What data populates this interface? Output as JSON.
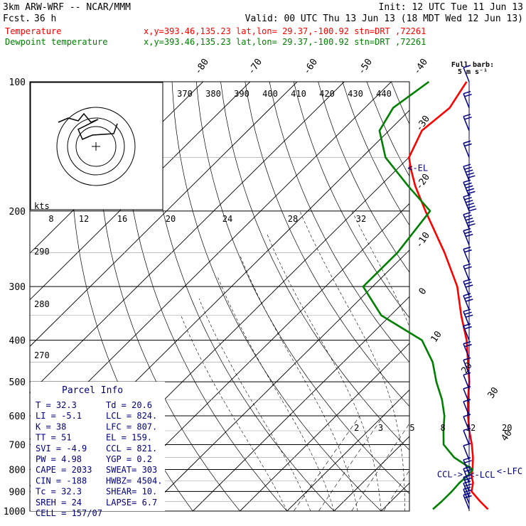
{
  "header": {
    "model": "3km ARW-WRF -- NCAR/MMM",
    "fcst_label": "Fcst.",
    "fcst_hours": "36 h",
    "init": "Init: 12 UTC Tue 11 Jun 13",
    "valid": "Valid: 00 UTC Thu 13 Jun 13 (18 MDT Wed 12 Jun 13)",
    "legend": [
      {
        "name": "Temperature",
        "info": "x,y=393.46,135.23   lat,lon= 29.37,-100.92   stn=DRT ,72261",
        "color": "#ff0000"
      },
      {
        "name": "Dewpoint temperature",
        "info": "x,y=393.46,135.23   lat,lon= 29.37,-100.92   stn=DRT ,72261",
        "color": "#008000"
      }
    ],
    "barb_key": [
      "Full barb:",
      "5 m s⁻¹"
    ]
  },
  "parcel_info": {
    "title": "Parcel Info",
    "rows": [
      [
        "T   =    32.3",
        "Td =  20.6"
      ],
      [
        "LI  =    -5.1",
        "LCL =  824."
      ],
      [
        "K   =      38",
        "LFC =  807."
      ],
      [
        "TT  =      51",
        "EL  =  159."
      ],
      [
        "SVI =    -4.9",
        "CCL =  821."
      ],
      [
        "PW  =    4.98",
        "YGP =   0.2"
      ],
      [
        "CAPE =   2033",
        "SWEAT=  303"
      ],
      [
        "CIN =    -188",
        "HWBZ= 4504."
      ],
      [
        "Tc  =    32.3",
        "SHEAR=  10."
      ],
      [
        "SREH =     24",
        "LAPSE=  6.7"
      ],
      [
        "CELL = 157/07",
        ""
      ]
    ]
  },
  "chart_data": {
    "type": "line",
    "subtype": "skew-T log-P sounding",
    "y_axis": {
      "label": "",
      "scale": "log",
      "ticks": [
        100,
        200,
        300,
        400,
        500,
        600,
        700,
        800,
        900,
        1000
      ],
      "range": [
        1000,
        100
      ]
    },
    "isotherm_labels": [
      -80,
      -70,
      -60,
      -50,
      -40,
      -30,
      -20,
      -10,
      0,
      10,
      20,
      30,
      40
    ],
    "theta_e_labels": [
      370,
      380,
      390,
      400,
      410,
      420,
      430,
      440
    ],
    "mixing_ratio_labels": [
      2,
      3,
      5,
      8,
      12,
      20
    ],
    "inset_theta_labels": [
      290,
      280,
      270
    ],
    "inset_speed_label": "kts",
    "inset_speed_ticks": [
      8,
      12,
      16,
      20,
      24,
      28,
      32
    ],
    "level_markers": [
      {
        "label": "<-EL",
        "p": 159,
        "t": -58
      },
      {
        "label": "CCL->",
        "p": 821,
        "t": 14
      },
      {
        "label": "<-LCL",
        "p": 824,
        "t": 21
      },
      {
        "label": "<-LFC",
        "p": 807,
        "t": 26
      }
    ],
    "series": [
      {
        "name": "Temperature",
        "color": "#ff0000",
        "points": [
          [
            990,
            32.3
          ],
          [
            950,
            29
          ],
          [
            900,
            25
          ],
          [
            860,
            23.5
          ],
          [
            825,
            21.5
          ],
          [
            800,
            20.5
          ],
          [
            750,
            18
          ],
          [
            700,
            15
          ],
          [
            650,
            11.5
          ],
          [
            600,
            8
          ],
          [
            550,
            4.5
          ],
          [
            500,
            1
          ],
          [
            450,
            -3.5
          ],
          [
            400,
            -8.5
          ],
          [
            350,
            -15
          ],
          [
            300,
            -22
          ],
          [
            250,
            -32
          ],
          [
            200,
            -45
          ],
          [
            175,
            -52.5
          ],
          [
            160,
            -57
          ],
          [
            150,
            -60
          ],
          [
            130,
            -63
          ],
          [
            115,
            -62
          ],
          [
            100,
            -64
          ]
        ]
      },
      {
        "name": "Dewpoint temperature",
        "color": "#008000",
        "points": [
          [
            990,
            20.6
          ],
          [
            950,
            20.8
          ],
          [
            900,
            20.8
          ],
          [
            860,
            20.6
          ],
          [
            825,
            20.8
          ],
          [
            800,
            20.5
          ],
          [
            750,
            14
          ],
          [
            700,
            9
          ],
          [
            650,
            6
          ],
          [
            600,
            3
          ],
          [
            550,
            -1
          ],
          [
            500,
            -6
          ],
          [
            450,
            -11
          ],
          [
            400,
            -18
          ],
          [
            350,
            -32
          ],
          [
            300,
            -42
          ],
          [
            250,
            -42
          ],
          [
            200,
            -44
          ],
          [
            175,
            -54
          ],
          [
            150,
            -65
          ],
          [
            130,
            -72
          ],
          [
            115,
            -74
          ],
          [
            100,
            -72
          ]
        ]
      }
    ],
    "wind_barbs": [
      {
        "p": 100,
        "spd": 5
      },
      {
        "p": 115,
        "spd": 10
      },
      {
        "p": 130,
        "spd": 10
      },
      {
        "p": 150,
        "spd": 10
      },
      {
        "p": 170,
        "spd": 25
      },
      {
        "p": 185,
        "spd": 25
      },
      {
        "p": 200,
        "spd": 30
      },
      {
        "p": 220,
        "spd": 25
      },
      {
        "p": 240,
        "spd": 15
      },
      {
        "p": 265,
        "spd": 10
      },
      {
        "p": 290,
        "spd": 10
      },
      {
        "p": 315,
        "spd": 15
      },
      {
        "p": 340,
        "spd": 15
      },
      {
        "p": 370,
        "spd": 15
      },
      {
        "p": 400,
        "spd": 10
      },
      {
        "p": 440,
        "spd": 10
      },
      {
        "p": 480,
        "spd": 5
      },
      {
        "p": 520,
        "spd": 5
      },
      {
        "p": 560,
        "spd": 5
      },
      {
        "p": 600,
        "spd": 5
      },
      {
        "p": 650,
        "spd": 5
      },
      {
        "p": 700,
        "spd": 5
      },
      {
        "p": 760,
        "spd": 5
      },
      {
        "p": 820,
        "spd": 10
      },
      {
        "p": 860,
        "spd": 10
      },
      {
        "p": 900,
        "spd": 10
      },
      {
        "p": 930,
        "spd": 10
      },
      {
        "p": 960,
        "spd": 10
      },
      {
        "p": 990,
        "spd": 10
      }
    ],
    "hodograph": {
      "rings": 3
    }
  }
}
